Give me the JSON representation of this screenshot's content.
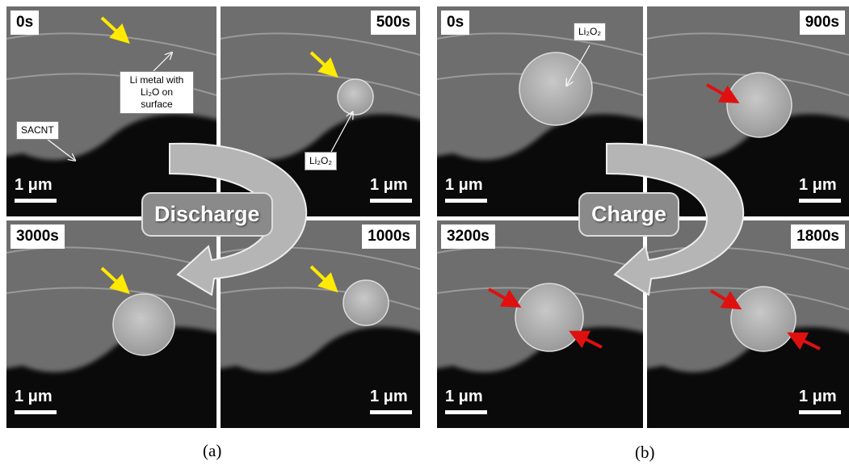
{
  "panels": [
    {
      "caption": "(a)",
      "process": "Discharge",
      "frames": [
        {
          "time": "0s",
          "scale": "1 μm"
        },
        {
          "time": "500s",
          "scale": "1 μm"
        },
        {
          "time": "3000s",
          "scale": "1 μm"
        },
        {
          "time": "1000s",
          "scale": "1 μm"
        }
      ],
      "annotations": [
        "Li metal with Li₂O on surface",
        "SACNT",
        "Li₂O₂"
      ]
    },
    {
      "caption": "(b)",
      "process": "Charge",
      "frames": [
        {
          "time": "0s",
          "scale": "1 μm"
        },
        {
          "time": "900s",
          "scale": "1 μm"
        },
        {
          "time": "3200s",
          "scale": "1 μm"
        },
        {
          "time": "1800s",
          "scale": "1 μm"
        }
      ],
      "annotations": [
        "Li₂O₂"
      ]
    }
  ]
}
